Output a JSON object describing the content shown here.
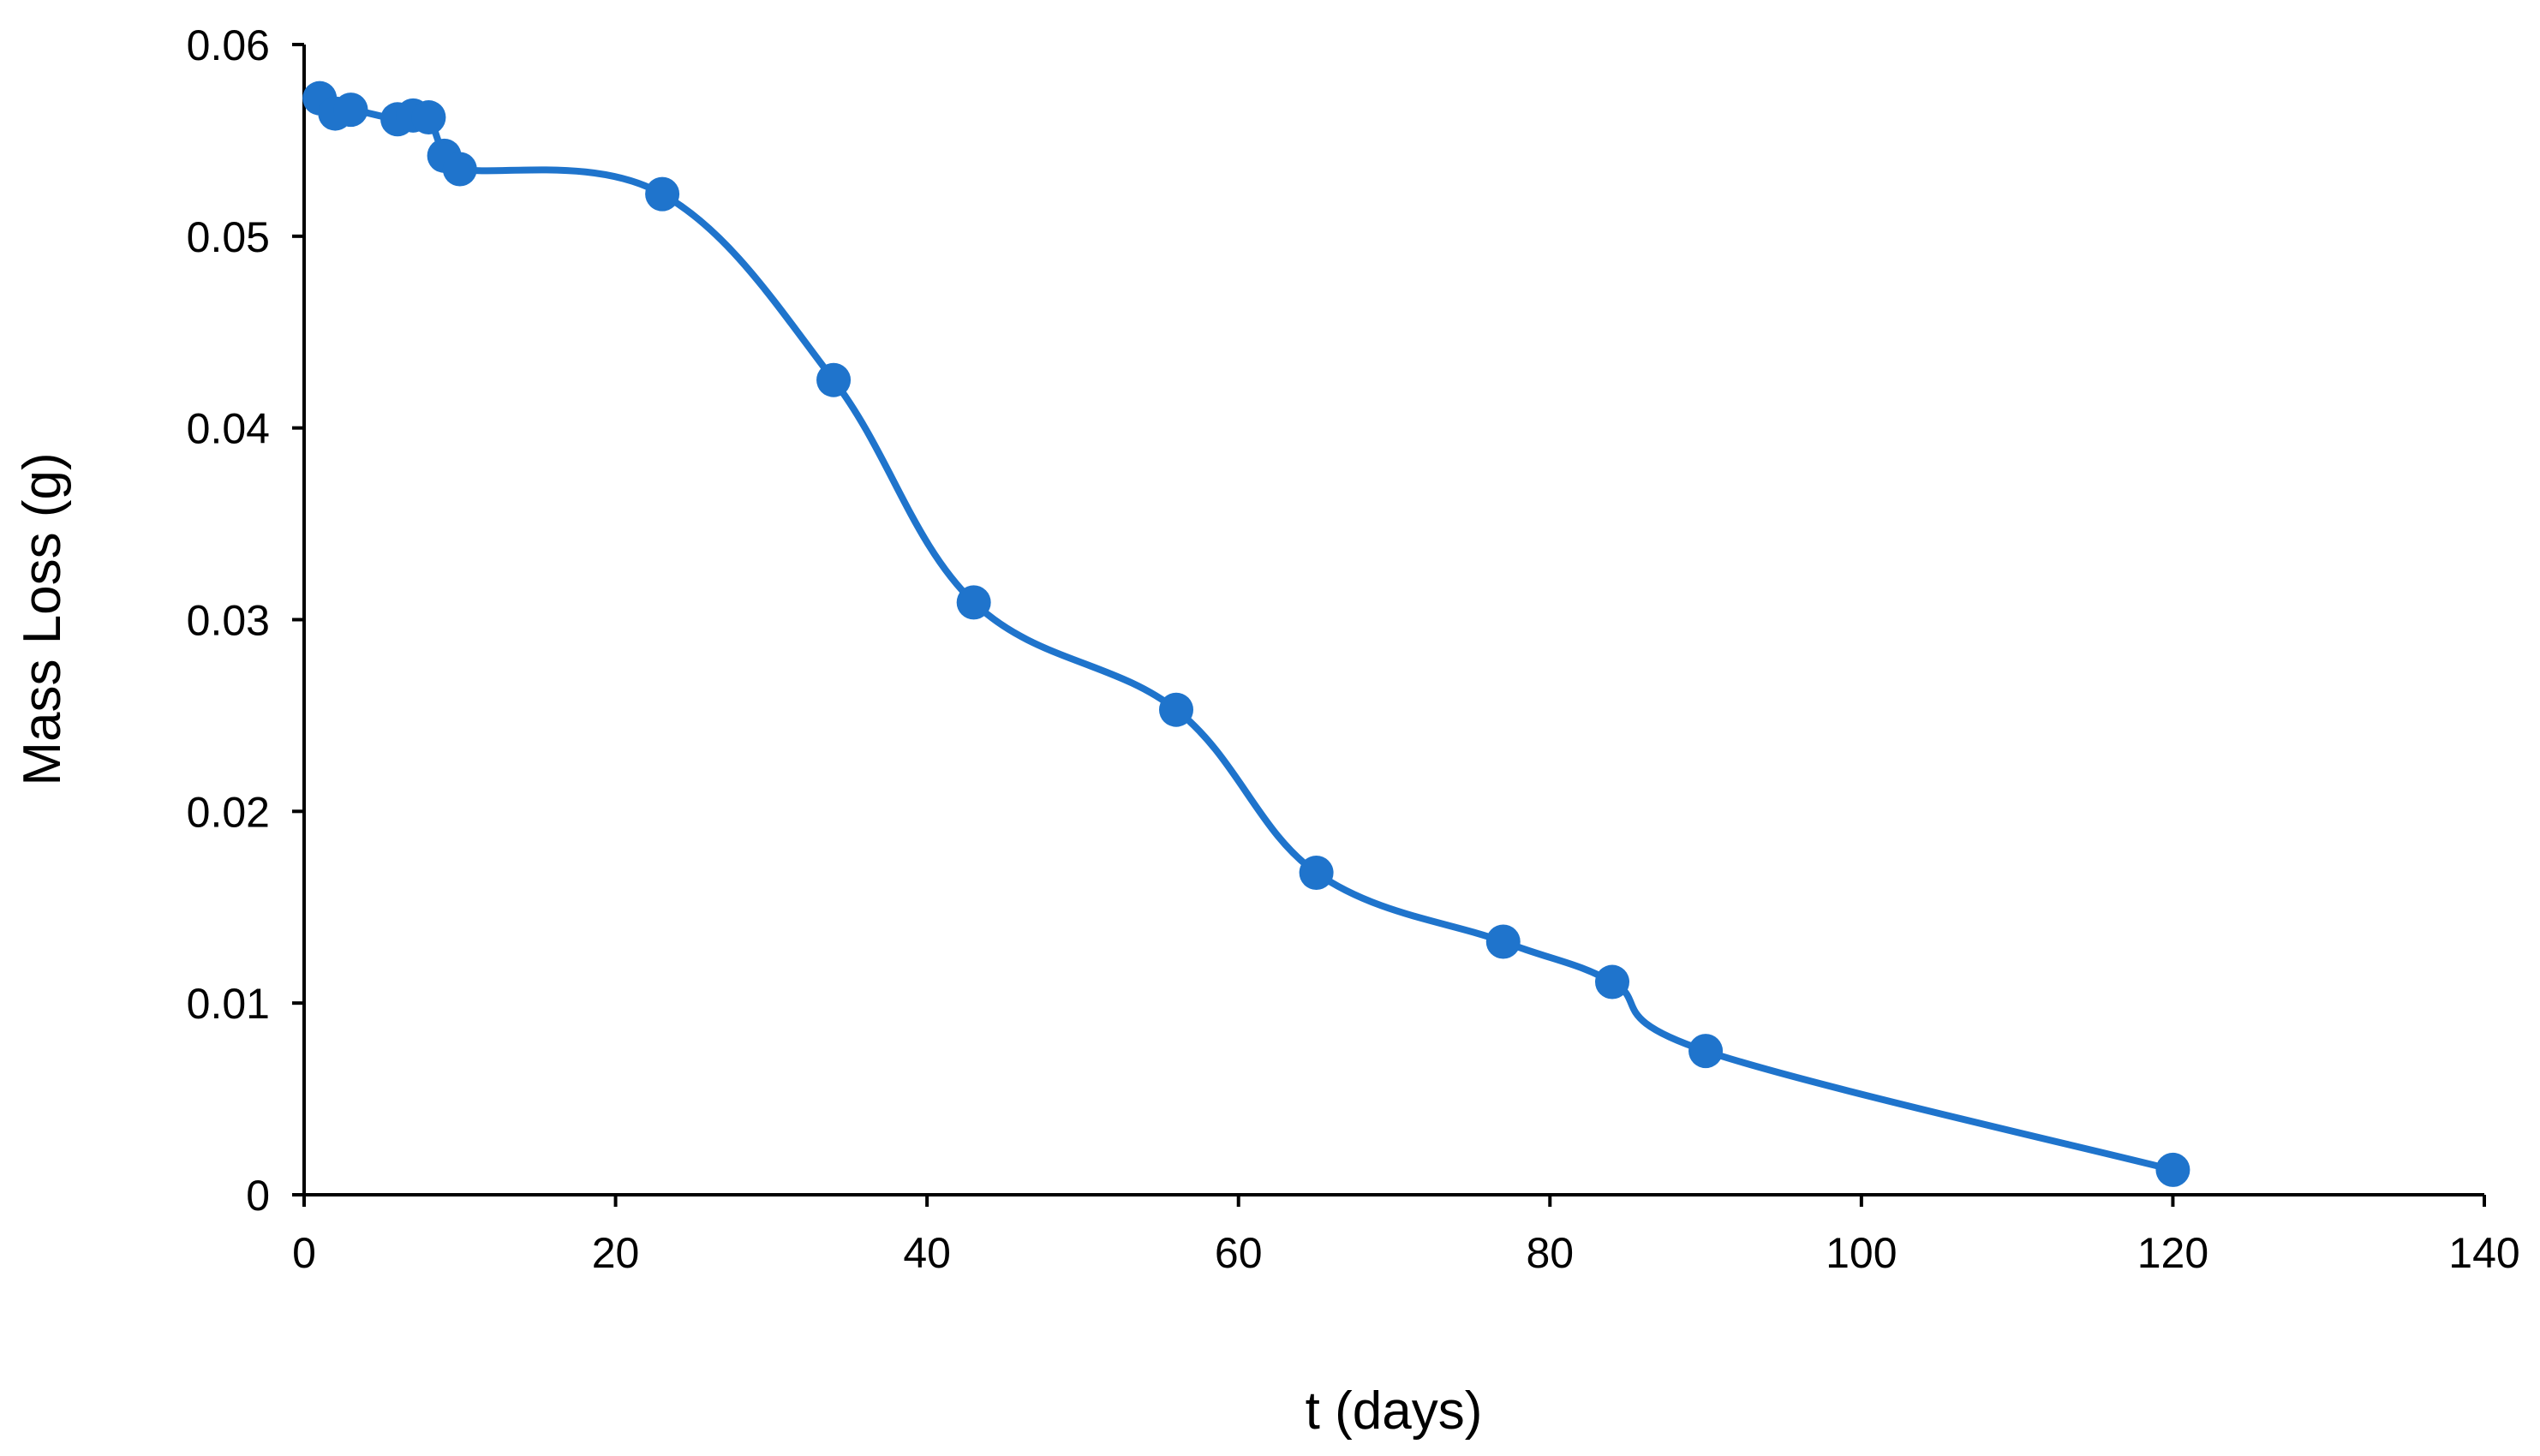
{
  "chart_data": {
    "type": "scatter",
    "title": "",
    "xlabel": "t (days)",
    "ylabel": "Mass Loss (g)",
    "xlim": [
      0,
      140
    ],
    "ylim": [
      0,
      0.06
    ],
    "x_ticks": [
      "0",
      "20",
      "40",
      "60",
      "80",
      "100",
      "120",
      "140"
    ],
    "y_ticks": [
      "0",
      "0.01",
      "0.02",
      "0.03",
      "0.04",
      "0.05",
      "0.06"
    ],
    "x_tick_values": [
      0,
      20,
      40,
      60,
      80,
      100,
      120,
      140
    ],
    "y_tick_values": [
      0,
      0.01,
      0.02,
      0.03,
      0.04,
      0.05,
      0.06
    ],
    "grid": false,
    "legend": "none",
    "smooth_line": true,
    "color": "#1F74CC",
    "series": [
      {
        "x": [
          1,
          2,
          3,
          6,
          7,
          8,
          9,
          10,
          23,
          34,
          43,
          56,
          65,
          77,
          84,
          90,
          120
        ],
        "y": [
          0.0572,
          0.0564,
          0.0566,
          0.0561,
          0.0563,
          0.0562,
          0.0542,
          0.0535,
          0.0522,
          0.0425,
          0.0309,
          0.0253,
          0.0168,
          0.0132,
          0.0111,
          0.0075,
          0.0013
        ]
      }
    ]
  }
}
